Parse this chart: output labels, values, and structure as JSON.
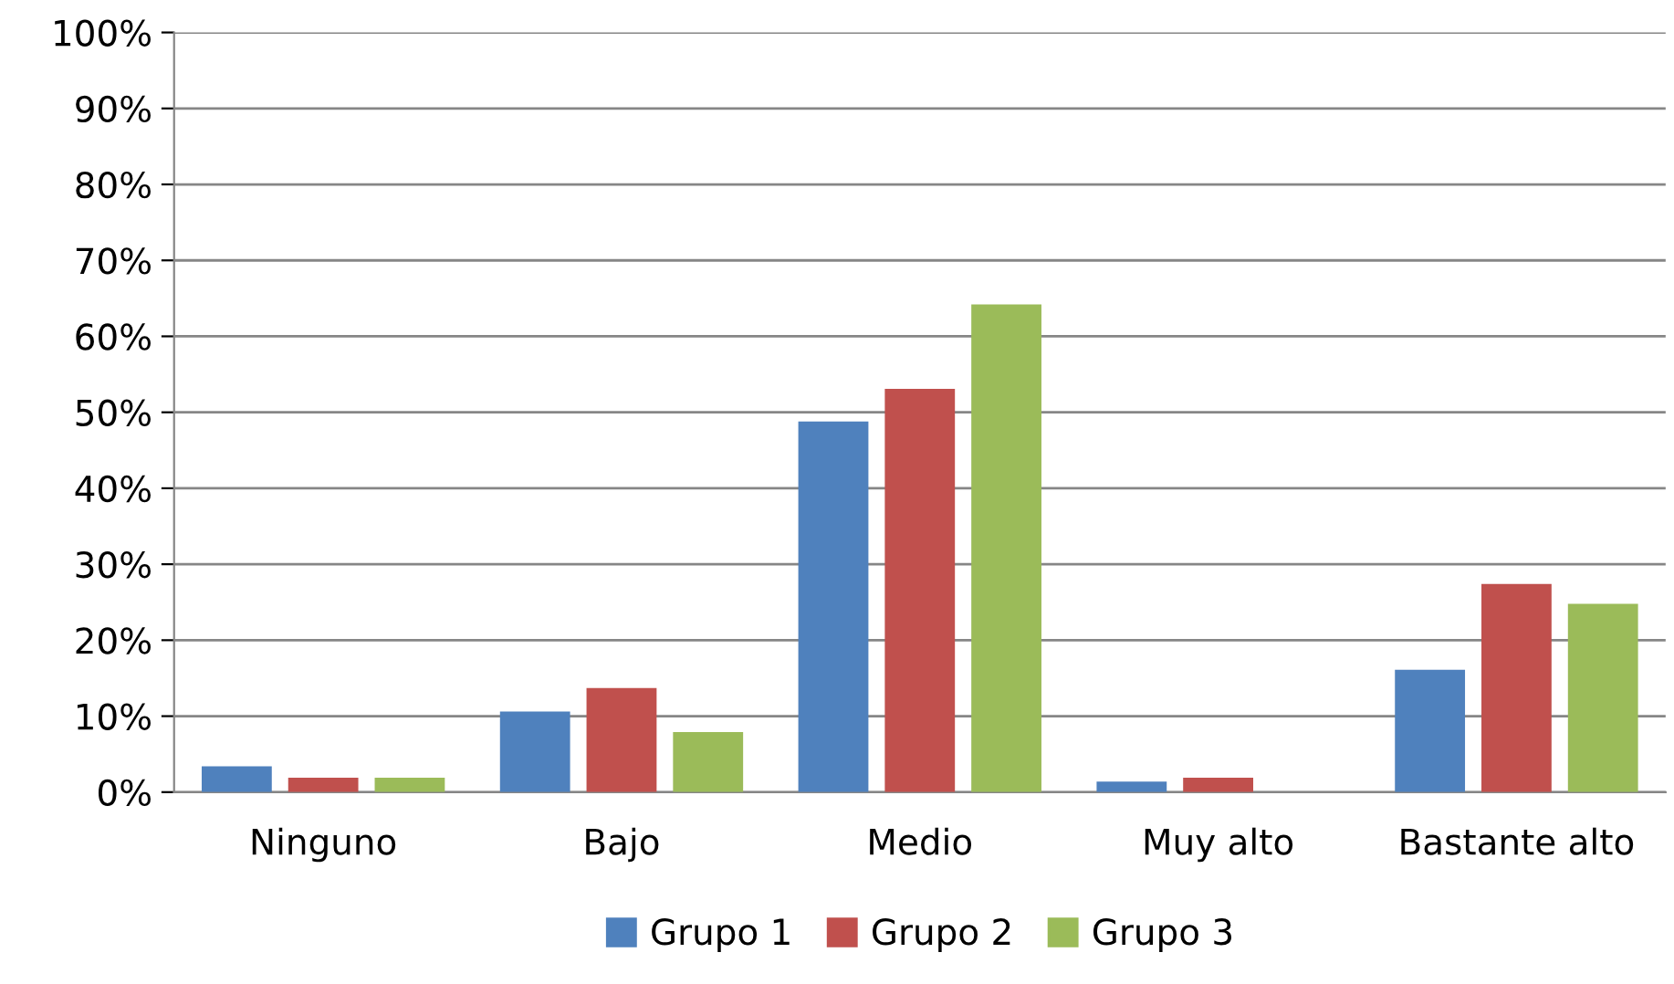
{
  "chart_data": {
    "type": "bar",
    "categories": [
      "Ninguno",
      "Bajo",
      "Medio",
      "Muy alto",
      "Bastante alto"
    ],
    "series": [
      {
        "name": "Grupo 1",
        "color": "#4f81bd",
        "values": [
          3.4,
          10.6,
          48.8,
          1.4,
          16.1
        ]
      },
      {
        "name": "Grupo 2",
        "color": "#c0504d",
        "values": [
          1.9,
          13.7,
          53.1,
          1.9,
          27.4
        ]
      },
      {
        "name": "Grupo 3",
        "color": "#9bbb59",
        "values": [
          1.9,
          7.9,
          64.2,
          0,
          24.8
        ]
      }
    ],
    "ylim": [
      0,
      100
    ],
    "yticks": [
      {
        "value": 0,
        "label": "0%"
      },
      {
        "value": 10,
        "label": "10%"
      },
      {
        "value": 20,
        "label": "20%"
      },
      {
        "value": 30,
        "label": "30%"
      },
      {
        "value": 40,
        "label": "40%"
      },
      {
        "value": 50,
        "label": "50%"
      },
      {
        "value": 60,
        "label": "60%"
      },
      {
        "value": 70,
        "label": "70%"
      },
      {
        "value": 80,
        "label": "80%"
      },
      {
        "value": 90,
        "label": "90%"
      },
      {
        "value": 100,
        "label": "100%"
      }
    ],
    "grid": "y",
    "legend": "bottom"
  }
}
